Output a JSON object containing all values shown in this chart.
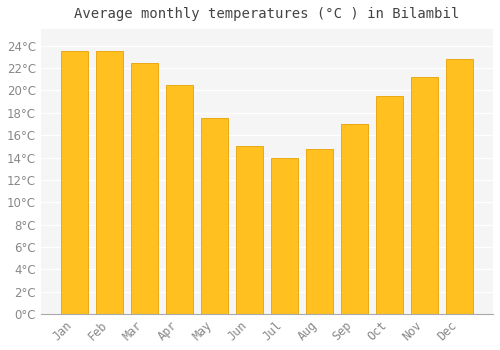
{
  "title": "Average monthly temperatures (°C ) in Bilambil",
  "months": [
    "Jan",
    "Feb",
    "Mar",
    "Apr",
    "May",
    "Jun",
    "Jul",
    "Aug",
    "Sep",
    "Oct",
    "Nov",
    "Dec"
  ],
  "values": [
    23.5,
    23.5,
    22.5,
    20.5,
    17.5,
    15.0,
    14.0,
    14.8,
    17.0,
    19.5,
    21.2,
    22.8
  ],
  "bar_color": "#FFC020",
  "bar_edge_color": "#E8A000",
  "background_color": "#FFFFFF",
  "plot_area_color": "#F5F5F5",
  "grid_color": "#FFFFFF",
  "text_color": "#888888",
  "title_color": "#444444",
  "ylim": [
    0,
    25.5
  ],
  "yticks": [
    0,
    2,
    4,
    6,
    8,
    10,
    12,
    14,
    16,
    18,
    20,
    22,
    24
  ],
  "title_fontsize": 10,
  "tick_fontsize": 8.5
}
